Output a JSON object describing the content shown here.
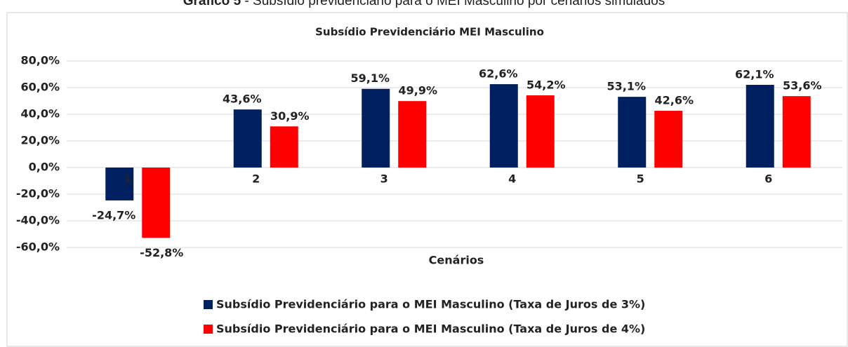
{
  "caption": {
    "label": "Gráfico 5",
    "text": "- Subsídio previdenciário para o MEI Masculino por cenários simulados"
  },
  "chart_data": {
    "type": "bar",
    "title": "Subsídio Previdenciário MEI Masculino",
    "x_label": "Cenários",
    "categories": [
      "1",
      "2",
      "3",
      "4",
      "5",
      "6"
    ],
    "series": [
      {
        "name": "Subsídio Previdenciário para o MEI Masculino (Taxa de Juros de 3%)",
        "color": "#002060",
        "values": [
          -24.7,
          43.6,
          59.1,
          62.6,
          53.1,
          62.1
        ],
        "value_labels": [
          "-24,7%",
          "43,6%",
          "59,1%",
          "62,6%",
          "53,1%",
          "62,1%"
        ]
      },
      {
        "name": "Subsídio Previdenciário para o MEI Masculino (Taxa de Juros de 4%)",
        "color": "#ff0000",
        "values": [
          -52.8,
          30.9,
          49.9,
          54.2,
          42.6,
          53.6
        ],
        "value_labels": [
          "-52,8%",
          "30,9%",
          "49,9%",
          "54,2%",
          "42,6%",
          "53,6%"
        ]
      }
    ],
    "ylim": [
      -60,
      80
    ],
    "yticks": [
      {
        "value": -60,
        "label": "-60,0%"
      },
      {
        "value": -40,
        "label": "-40,0%"
      },
      {
        "value": -20,
        "label": "-20,0%"
      },
      {
        "value": 0,
        "label": "0,0%"
      },
      {
        "value": 20,
        "label": "20,0%"
      },
      {
        "value": 40,
        "label": "40,0%"
      },
      {
        "value": 60,
        "label": "60,0%"
      },
      {
        "value": 80,
        "label": "80,0%"
      }
    ],
    "grid": true,
    "legend": "bottom"
  }
}
